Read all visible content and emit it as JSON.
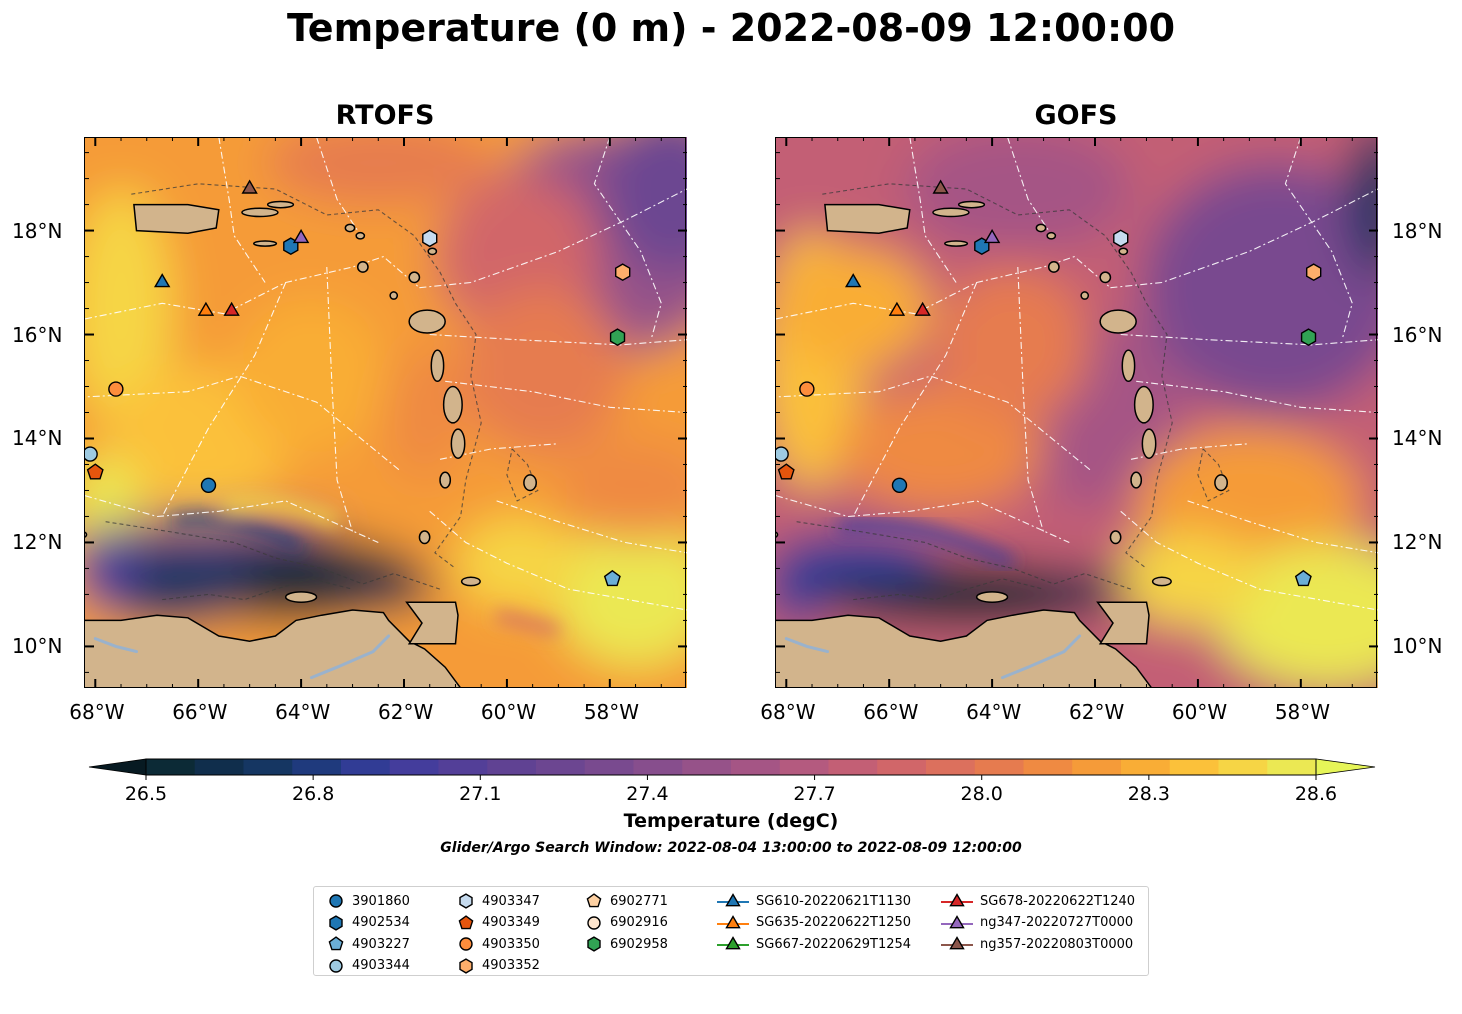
{
  "title": "Temperature (0 m) - 2022-08-09 12:00:00",
  "panels": [
    {
      "title": "RTOFS",
      "model": "rtofs"
    },
    {
      "title": "GOFS",
      "model": "gofs"
    }
  ],
  "lon_ticks": [
    "68°W",
    "66°W",
    "64°W",
    "62°W",
    "60°W",
    "58°W"
  ],
  "lat_ticks": [
    "18°N",
    "16°N",
    "14°N",
    "12°N",
    "10°N"
  ],
  "colorbar": {
    "label": "Temperature (degC)",
    "ticks": [
      "26.5",
      "26.8",
      "27.1",
      "27.4",
      "27.7",
      "28.0",
      "28.3",
      "28.6"
    ],
    "range": [
      26.5,
      28.6
    ],
    "colors": [
      "#0c2a36",
      "#102e4c",
      "#153662",
      "#1f3a7d",
      "#313c95",
      "#443d9c",
      "#533f98",
      "#604293",
      "#6c4691",
      "#794a8f",
      "#874e8d",
      "#965289",
      "#a55585",
      "#b45a7f",
      "#c35f75",
      "#d16669",
      "#dc705d",
      "#e67b4f",
      "#ef8a42",
      "#f59b39",
      "#f9ad36",
      "#fbc13a",
      "#f6d545",
      "#ebe853"
    ],
    "extend_low": "#071a22",
    "extend_high": "#e6f558"
  },
  "search_window": "Glider/Argo Search Window: 2022-08-04 13:00:00 to 2022-08-09 12:00:00",
  "legend": {
    "columns": [
      [
        {
          "label": "3901860",
          "marker": "circle",
          "color": "#1f77b4"
        },
        {
          "label": "4902534",
          "marker": "hexagon",
          "color": "#1f77b4"
        },
        {
          "label": "4903227",
          "marker": "pentagon",
          "color": "#6baed6"
        },
        {
          "label": "4903344",
          "marker": "circle",
          "color": "#9ecae1"
        }
      ],
      [
        {
          "label": "4903347",
          "marker": "hexagon",
          "color": "#c6dbef"
        },
        {
          "label": "4903349",
          "marker": "pentagon",
          "color": "#e6550d"
        },
        {
          "label": "4903350",
          "marker": "circle",
          "color": "#fd8d3c"
        },
        {
          "label": "4903352",
          "marker": "hexagon",
          "color": "#fdae6b"
        }
      ],
      [
        {
          "label": "6902771",
          "marker": "pentagon",
          "color": "#fdd0a2"
        },
        {
          "label": "6902916",
          "marker": "circle",
          "color": "#fee6ce"
        },
        {
          "label": "6902958",
          "marker": "hexagon",
          "color": "#31a354"
        }
      ],
      [
        {
          "label": "SG610-20220621T1130",
          "marker": "triangle-line",
          "color": "#1f77b4"
        },
        {
          "label": "SG635-20220622T1250",
          "marker": "triangle-line",
          "color": "#ff7f0e"
        },
        {
          "label": "SG667-20220629T1254",
          "marker": "triangle-line",
          "color": "#2ca02c"
        }
      ],
      [
        {
          "label": "SG678-20220622T1240",
          "marker": "triangle-line",
          "color": "#d62728"
        },
        {
          "label": "ng347-20220727T0000",
          "marker": "triangle-line",
          "color": "#9467bd"
        },
        {
          "label": "ng357-20220803T0000",
          "marker": "triangle-line",
          "color": "#8c564b"
        }
      ]
    ]
  },
  "observations": [
    {
      "lon": -67.6,
      "lat": 14.95,
      "marker": "circle",
      "color": "#fd8d3c"
    },
    {
      "lon": -68.1,
      "lat": 13.7,
      "marker": "circle",
      "color": "#9ecae1"
    },
    {
      "lon": -68.0,
      "lat": 13.35,
      "marker": "pentagon",
      "color": "#e6550d"
    },
    {
      "lon": -65.8,
      "lat": 13.1,
      "marker": "circle",
      "color": "#1f77b4"
    },
    {
      "lon": -64.2,
      "lat": 17.7,
      "marker": "hexagon",
      "color": "#1f77b4"
    },
    {
      "lon": -61.5,
      "lat": 17.85,
      "marker": "hexagon",
      "color": "#c6dbef"
    },
    {
      "lon": -57.75,
      "lat": 17.2,
      "marker": "hexagon",
      "color": "#fdae6b"
    },
    {
      "lon": -57.85,
      "lat": 15.95,
      "marker": "hexagon",
      "color": "#31a354"
    },
    {
      "lon": -57.95,
      "lat": 11.3,
      "marker": "pentagon",
      "color": "#6baed6"
    },
    {
      "lon": -66.7,
      "lat": 17.0,
      "marker": "triangle",
      "color": "#1f77b4"
    },
    {
      "lon": -65.85,
      "lat": 16.45,
      "marker": "triangle",
      "color": "#ff7f0e"
    },
    {
      "lon": -65.35,
      "lat": 16.45,
      "marker": "triangle",
      "color": "#d62728"
    },
    {
      "lon": -64.0,
      "lat": 17.85,
      "marker": "triangle",
      "color": "#9467bd"
    },
    {
      "lon": -65.0,
      "lat": 18.8,
      "marker": "triangle",
      "color": "#8c564b"
    }
  ],
  "map": {
    "lon_range": [
      -68.2,
      -56.5
    ],
    "lat_range": [
      9.2,
      19.8
    ],
    "land_color": "#d2b48c",
    "river_color": "#9ab2cc"
  }
}
